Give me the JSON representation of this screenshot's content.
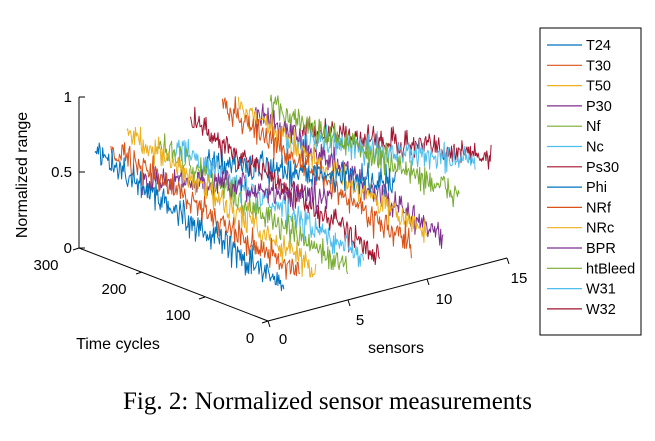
{
  "caption": "Fig. 2: Normalized sensor measurements",
  "chart_data": {
    "type": "line",
    "title": "",
    "projection": "3d",
    "xlabel": "sensors",
    "ylabel": "Time cycles",
    "zlabel": "Normalized range",
    "xlim": [
      0,
      15
    ],
    "ylim": [
      0,
      300
    ],
    "zlim": [
      0,
      1
    ],
    "xticks": [
      "0",
      "5",
      "10",
      "15"
    ],
    "yticks": [
      "0",
      "100",
      "200",
      "300"
    ],
    "zticks": [
      "0",
      "0.5",
      "1"
    ],
    "grid": false,
    "legend_position": "right",
    "time_range": [
      0,
      300
    ],
    "series": [
      {
        "name": "T24",
        "sensor": 1,
        "color": "#0072BD",
        "start": 0.6,
        "end": 0.2
      },
      {
        "name": "T30",
        "sensor": 2,
        "color": "#D95319",
        "start": 0.62,
        "end": 0.25
      },
      {
        "name": "T50",
        "sensor": 3,
        "color": "#EDB120",
        "start": 0.7,
        "end": 0.25
      },
      {
        "name": "P30",
        "sensor": 4,
        "color": "#7E2F8E",
        "start": 0.35,
        "end": 0.7
      },
      {
        "name": "Nf",
        "sensor": 5,
        "color": "#77AC30",
        "start": 0.55,
        "end": 0.2
      },
      {
        "name": "Nc",
        "sensor": 6,
        "color": "#4DBEEE",
        "start": 0.5,
        "end": 0.25
      },
      {
        "name": "Ps30",
        "sensor": 7,
        "color": "#A2142F",
        "start": 0.65,
        "end": 0.25
      },
      {
        "name": "Phi",
        "sensor": 8,
        "color": "#0072BD",
        "start": 0.35,
        "end": 0.7
      },
      {
        "name": "NRf",
        "sensor": 9,
        "color": "#D95319",
        "start": 0.7,
        "end": 0.25
      },
      {
        "name": "NRc",
        "sensor": 10,
        "color": "#EDB120",
        "start": 0.65,
        "end": 0.3
      },
      {
        "name": "BPR",
        "sensor": 11,
        "color": "#7E2F8E",
        "start": 0.6,
        "end": 0.25
      },
      {
        "name": "htBleed",
        "sensor": 12,
        "color": "#77AC30",
        "start": 0.6,
        "end": 0.5
      },
      {
        "name": "W31",
        "sensor": 13,
        "color": "#4DBEEE",
        "start": 0.35,
        "end": 0.7
      },
      {
        "name": "W32",
        "sensor": 14,
        "color": "#A2142F",
        "start": 0.4,
        "end": 0.7
      }
    ]
  }
}
